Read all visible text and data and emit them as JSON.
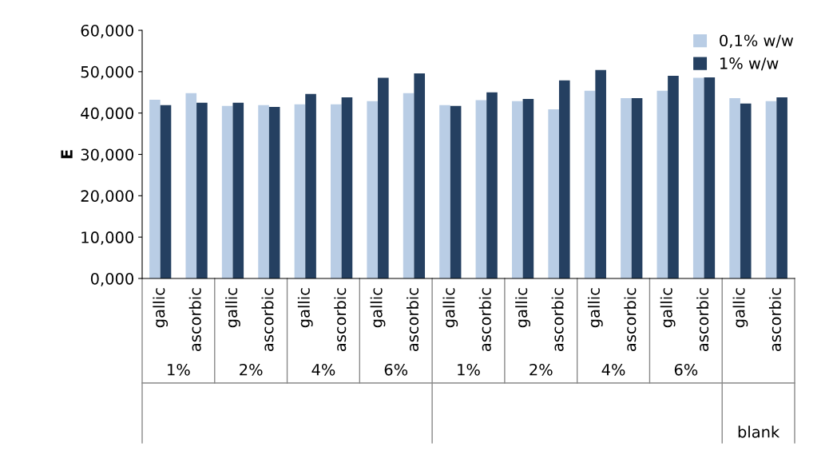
{
  "chart_data": {
    "type": "bar",
    "ylabel": "E",
    "categories": [
      "gallic",
      "ascorbic",
      "gallic",
      "ascorbic",
      "gallic",
      "ascorbic",
      "gallic",
      "ascorbic",
      "gallic",
      "ascorbic",
      "gallic",
      "ascorbic",
      "gallic",
      "ascorbic",
      "gallic",
      "ascorbic",
      "gallic",
      "ascorbic"
    ],
    "series": [
      {
        "name": "0,1% w/w",
        "color": "#b9cde5",
        "values": [
          43.2,
          44.8,
          41.7,
          41.9,
          42.1,
          42.1,
          42.9,
          44.8,
          41.9,
          43.1,
          42.9,
          40.9,
          45.4,
          43.6,
          45.4,
          48.5,
          43.6,
          42.9
        ]
      },
      {
        "name": "1% w/w",
        "color": "#254061",
        "values": [
          41.9,
          42.5,
          42.5,
          41.5,
          44.6,
          43.8,
          48.5,
          49.6,
          41.7,
          45.0,
          43.4,
          47.9,
          50.4,
          43.6,
          49.0,
          48.6,
          42.3,
          43.8
        ]
      }
    ],
    "ylim": [
      0,
      60
    ],
    "yticks": [
      {
        "value": 0,
        "label": "0,000"
      },
      {
        "value": 10,
        "label": "10,000"
      },
      {
        "value": 20,
        "label": "20,000"
      },
      {
        "value": 30,
        "label": "30,000"
      },
      {
        "value": 40,
        "label": "40,000"
      },
      {
        "value": 50,
        "label": "50,000"
      },
      {
        "value": 60,
        "label": "60,000"
      }
    ],
    "annotations": [
      "1%",
      "2%",
      "4%",
      "6%",
      "1%",
      "2%",
      "4%",
      "6%",
      "blank"
    ],
    "legend": "top right",
    "grid": false
  }
}
